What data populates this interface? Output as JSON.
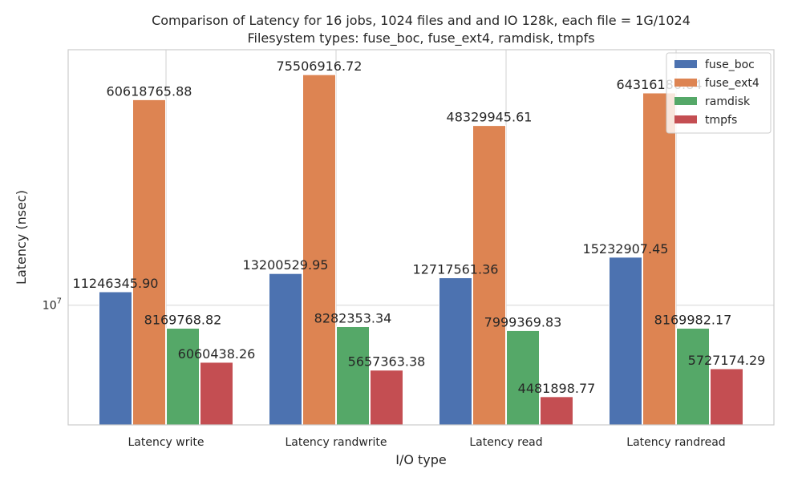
{
  "chart_data": {
    "type": "bar",
    "title_line1": "Comparison of Latency for 16 jobs, 1024 files and  and IO 128k, each file = 1G/1024",
    "title_line2": "Filesystem types: fuse_boc, fuse_ext4, ramdisk, tmpfs",
    "xlabel": "I/O type",
    "ylabel": "Latency (nsec)",
    "yscale": "log",
    "ylim": [
      3500000,
      94000000
    ],
    "yticks": [
      {
        "value": 10000000,
        "base": "10",
        "exp": "7"
      }
    ],
    "grid": true,
    "legend_position": "top-right",
    "categories": [
      "Latency write",
      "Latency randwrite",
      "Latency read",
      "Latency randread"
    ],
    "series": [
      {
        "name": "fuse_boc",
        "color": "#4c72b0",
        "values": [
          11246345.9,
          13200529.95,
          12717561.36,
          15232907.45
        ],
        "labels": [
          "11246345.90",
          "13200529.95",
          "12717561.36",
          "15232907.45"
        ]
      },
      {
        "name": "fuse_ext4",
        "color": "#dd8452",
        "values": [
          60618765.88,
          75506916.72,
          48329945.61,
          64316186.84
        ],
        "labels": [
          "60618765.88",
          "75506916.72",
          "48329945.61",
          "64316186.84"
        ]
      },
      {
        "name": "ramdisk",
        "color": "#55a868",
        "values": [
          8169768.82,
          8282353.34,
          7999369.83,
          8169982.17
        ],
        "labels": [
          "8169768.82",
          "8282353.34",
          "7999369.83",
          "8169982.17"
        ]
      },
      {
        "name": "tmpfs",
        "color": "#c44e52",
        "values": [
          6060438.26,
          5657363.38,
          4481898.77,
          5727174.29
        ],
        "labels": [
          "6060438.26",
          "5657363.38",
          "4481898.77",
          "5727174.29"
        ]
      }
    ]
  }
}
